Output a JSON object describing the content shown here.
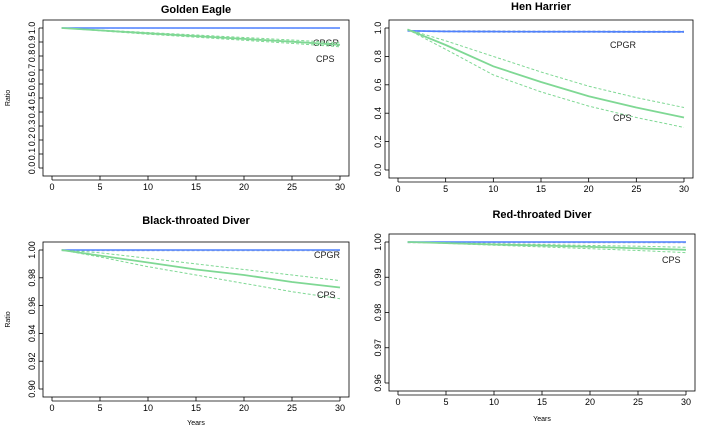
{
  "colors": {
    "cpgr_line": "#4f81ff",
    "cpgr_ci": "#aab8cc",
    "cps_line": "#7fd894",
    "cps_ci": "#7fd894",
    "axis": "#000000"
  },
  "chart_data": [
    {
      "type": "line",
      "title": "Golden Eagle",
      "xlabel": "",
      "ylabel": "Ratio",
      "xlim": [
        0,
        30
      ],
      "ylim": [
        0,
        1.0
      ],
      "xticks": [
        0,
        5,
        10,
        15,
        20,
        25,
        30
      ],
      "xtick_labels": [
        "0",
        "5",
        "10",
        "15",
        "20",
        "25",
        "30"
      ],
      "yticks": [
        0,
        0.1,
        0.2,
        0.3,
        0.4,
        0.5,
        0.6,
        0.7,
        0.8,
        0.9,
        1.0
      ],
      "ytick_labels": [
        "0.0",
        "0.1",
        "0.2",
        "0.3",
        "0.4",
        "0.5",
        "0.6",
        "0.7",
        "0.8",
        "0.9",
        "1.0"
      ],
      "series": [
        {
          "name": "CPGR",
          "x": [
            1,
            5,
            10,
            15,
            20,
            25,
            30
          ],
          "values": [
            1.0,
            1.0,
            1.0,
            1.0,
            1.0,
            1.0,
            1.0
          ],
          "lower": [
            1.0,
            0.999,
            0.999,
            0.999,
            0.999,
            0.999,
            0.999
          ],
          "upper": [
            1.0,
            1.0,
            1.0,
            1.0,
            1.0,
            1.0,
            1.0
          ]
        },
        {
          "name": "CPS",
          "x": [
            1,
            5,
            10,
            15,
            20,
            25,
            30
          ],
          "values": [
            1.0,
            0.983,
            0.962,
            0.942,
            0.922,
            0.902,
            0.88
          ],
          "lower": [
            1.0,
            0.98,
            0.956,
            0.934,
            0.912,
            0.89,
            0.866
          ],
          "upper": [
            1.0,
            0.986,
            0.968,
            0.95,
            0.932,
            0.914,
            0.894
          ]
        }
      ]
    },
    {
      "type": "line",
      "title": "Hen Harrier",
      "xlabel": "",
      "ylabel": "",
      "xlim": [
        0,
        30
      ],
      "ylim": [
        0,
        1.0
      ],
      "xticks": [
        0,
        5,
        10,
        15,
        20,
        25,
        30
      ],
      "xtick_labels": [
        "0",
        "5",
        "10",
        "15",
        "20",
        "25",
        "30"
      ],
      "yticks": [
        0,
        0.2,
        0.4,
        0.6,
        0.8,
        1.0
      ],
      "ytick_labels": [
        "0.0",
        "0.2",
        "0.4",
        "0.6",
        "0.8",
        "1.0"
      ],
      "series": [
        {
          "name": "CPGR",
          "x": [
            1,
            5,
            10,
            15,
            20,
            25,
            30
          ],
          "values": [
            0.98,
            0.976,
            0.975,
            0.974,
            0.974,
            0.973,
            0.973
          ],
          "lower": [
            0.978,
            0.972,
            0.97,
            0.969,
            0.969,
            0.968,
            0.968
          ],
          "upper": [
            0.982,
            0.98,
            0.98,
            0.979,
            0.979,
            0.978,
            0.978
          ]
        },
        {
          "name": "CPS",
          "x": [
            1,
            5,
            10,
            15,
            20,
            25,
            30
          ],
          "values": [
            0.99,
            0.88,
            0.73,
            0.62,
            0.52,
            0.44,
            0.37
          ],
          "lower": [
            0.99,
            0.85,
            0.67,
            0.55,
            0.45,
            0.37,
            0.3
          ],
          "upper": [
            0.99,
            0.91,
            0.8,
            0.69,
            0.59,
            0.51,
            0.44
          ]
        }
      ]
    },
    {
      "type": "line",
      "title": "Black-throated Diver",
      "xlabel": "Years",
      "ylabel": "Ratio",
      "xlim": [
        0,
        30
      ],
      "ylim": [
        0.9,
        1.0
      ],
      "xticks": [
        0,
        5,
        10,
        15,
        20,
        25,
        30
      ],
      "xtick_labels": [
        "0",
        "5",
        "10",
        "15",
        "20",
        "25",
        "30"
      ],
      "yticks": [
        0.9,
        0.92,
        0.94,
        0.96,
        0.98,
        1.0
      ],
      "ytick_labels": [
        "0.90",
        "0.92",
        "0.94",
        "0.96",
        "0.98",
        "1.00"
      ],
      "series": [
        {
          "name": "CPGR",
          "x": [
            1,
            5,
            10,
            15,
            20,
            25,
            30
          ],
          "values": [
            1.0,
            1.0,
            1.0,
            1.0,
            1.0,
            1.0,
            1.0
          ],
          "lower": [
            0.9995,
            0.9995,
            0.9995,
            0.9995,
            0.9995,
            0.9995,
            0.9995
          ],
          "upper": [
            1.0,
            1.0,
            1.0,
            1.0,
            1.0,
            1.0,
            1.0
          ]
        },
        {
          "name": "CPS",
          "x": [
            1,
            5,
            10,
            15,
            20,
            25,
            30
          ],
          "values": [
            1.0,
            0.996,
            0.991,
            0.986,
            0.982,
            0.977,
            0.973
          ],
          "lower": [
            1.0,
            0.995,
            0.988,
            0.982,
            0.976,
            0.97,
            0.965
          ],
          "upper": [
            1.0,
            0.998,
            0.994,
            0.99,
            0.986,
            0.982,
            0.978
          ]
        }
      ]
    },
    {
      "type": "line",
      "title": "Red-throated Diver",
      "xlabel": "Years",
      "ylabel": "",
      "xlim": [
        0,
        30
      ],
      "ylim": [
        0.96,
        1.0
      ],
      "xticks": [
        0,
        5,
        10,
        15,
        20,
        25,
        30
      ],
      "xtick_labels": [
        "0",
        "5",
        "10",
        "15",
        "20",
        "25",
        "30"
      ],
      "yticks": [
        0.96,
        0.97,
        0.98,
        0.99,
        1.0
      ],
      "ytick_labels": [
        "0.96",
        "0.97",
        "0.98",
        "0.99",
        "1.00"
      ],
      "series": [
        {
          "name": "CPGR",
          "x": [
            1,
            5,
            10,
            15,
            20,
            25,
            30
          ],
          "values": [
            1.0,
            1.0,
            1.0,
            1.0,
            1.0,
            1.0,
            1.0
          ],
          "lower": [
            0.9998,
            0.9998,
            0.9998,
            0.9998,
            0.9998,
            0.9998,
            0.9998
          ],
          "upper": [
            1.0,
            1.0,
            1.0,
            1.0,
            1.0,
            1.0,
            1.0
          ]
        },
        {
          "name": "CPS",
          "x": [
            1,
            5,
            10,
            15,
            20,
            25,
            30
          ],
          "values": [
            1.0,
            0.9997,
            0.9993,
            0.999,
            0.9986,
            0.9982,
            0.9978
          ],
          "lower": [
            1.0,
            0.9996,
            0.9991,
            0.9986,
            0.9981,
            0.9976,
            0.997
          ],
          "upper": [
            1.0,
            0.9998,
            0.9995,
            0.9993,
            0.999,
            0.9988,
            0.9985
          ]
        }
      ]
    }
  ]
}
